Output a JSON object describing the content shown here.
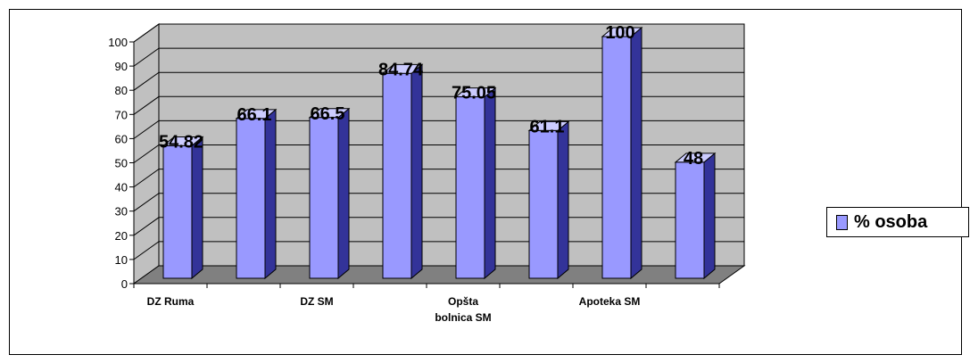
{
  "chart_data": {
    "type": "bar",
    "categories": [
      "DZ Ruma",
      "",
      "DZ SM",
      "",
      "Opšta bolnica SM",
      "",
      "Apoteka SM",
      ""
    ],
    "series": [
      {
        "name": "% osoba",
        "values": [
          54.82,
          66.1,
          66.5,
          84.74,
          75.05,
          61.1,
          100,
          48
        ]
      }
    ],
    "data_labels": [
      "54.82",
      "66.1",
      "66.5",
      "84.74",
      "75.05",
      "61.1",
      "100",
      "48"
    ],
    "y_ticks": [
      "0",
      "10",
      "20",
      "30",
      "40",
      "50",
      "60",
      "70",
      "80",
      "90",
      "100"
    ],
    "ylim": [
      0,
      100
    ],
    "title": "",
    "xlabel": "",
    "ylabel": "",
    "grid": true,
    "legend_position": "right",
    "three_d": true,
    "colors": {
      "bar_front": "#9999ff",
      "bar_side": "#333399",
      "bar_top": "#ccccff",
      "wall": "#c0c0c0",
      "floor": "#808080"
    }
  },
  "legend": {
    "label": "% osoba"
  }
}
